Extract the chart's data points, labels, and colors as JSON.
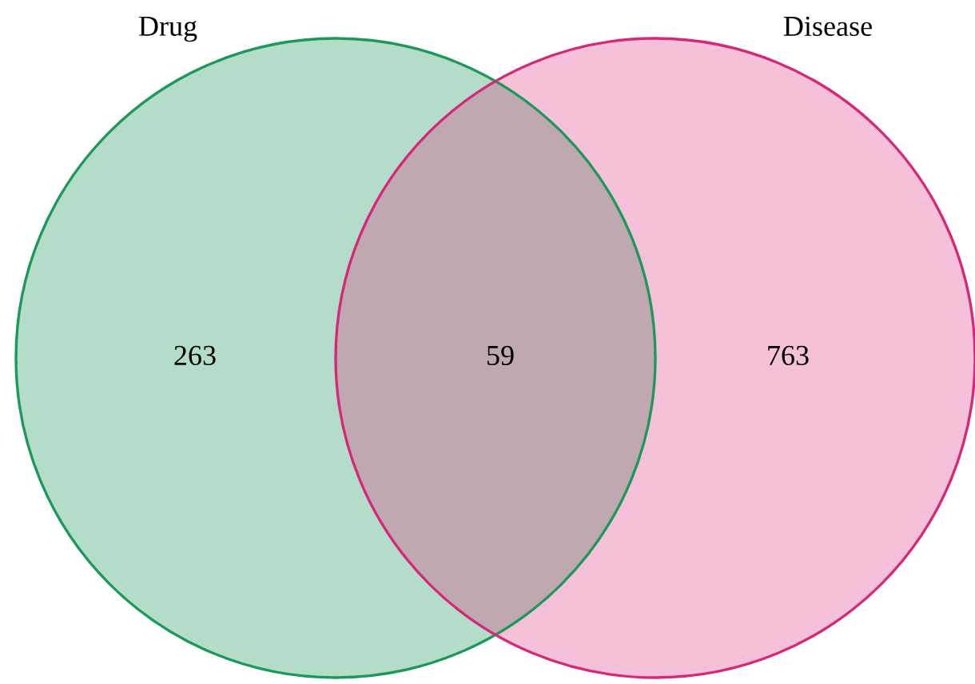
{
  "chart_data": {
    "type": "other",
    "categories": [
      null,
      null,
      null
    ],
    "values": [
      263,
      59,
      763
    ],
    "colors": [
      "#b3ddc8",
      "#c0a8b0",
      "#f4c1d9"
    ],
    "annotations": [
      "Drug",
      "Disease"
    ],
    "data_labels": true
  }
}
